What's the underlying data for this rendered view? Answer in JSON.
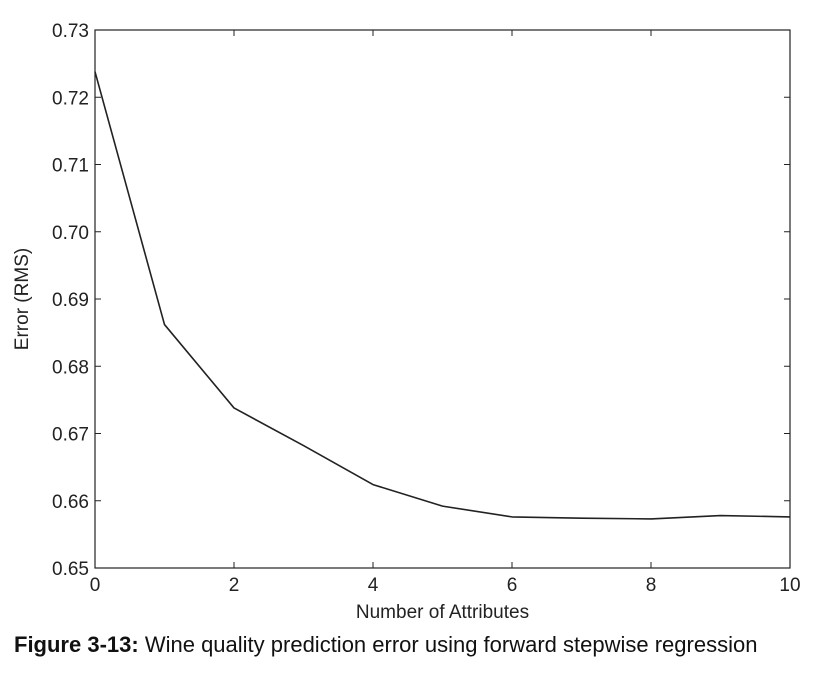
{
  "chart_data": {
    "type": "line",
    "title": "",
    "xlabel": "Number of Attributes",
    "ylabel": "Error (RMS)",
    "xlim": [
      0,
      10
    ],
    "ylim": [
      0.65,
      0.73
    ],
    "x_ticks": [
      0,
      2,
      4,
      6,
      8,
      10
    ],
    "y_ticks": [
      0.65,
      0.66,
      0.67,
      0.68,
      0.69,
      0.7,
      0.71,
      0.72,
      0.73
    ],
    "x_tick_labels": [
      "0",
      "2",
      "4",
      "6",
      "8",
      "10"
    ],
    "y_tick_labels": [
      "0.65",
      "0.66",
      "0.67",
      "0.68",
      "0.69",
      "0.70",
      "0.71",
      "0.72",
      "0.73"
    ],
    "grid": false,
    "series": [
      {
        "color": "#222222",
        "x": [
          0,
          1,
          2,
          3,
          4,
          5,
          6,
          7,
          8,
          9,
          10
        ],
        "y": [
          0.7238,
          0.6862,
          0.6738,
          0.6682,
          0.6624,
          0.6592,
          0.6576,
          0.6574,
          0.6573,
          0.6578,
          0.6576
        ]
      }
    ]
  },
  "caption": {
    "label": "Figure 3-13:",
    "text": "Wine quality prediction error using forward stepwise regression"
  }
}
